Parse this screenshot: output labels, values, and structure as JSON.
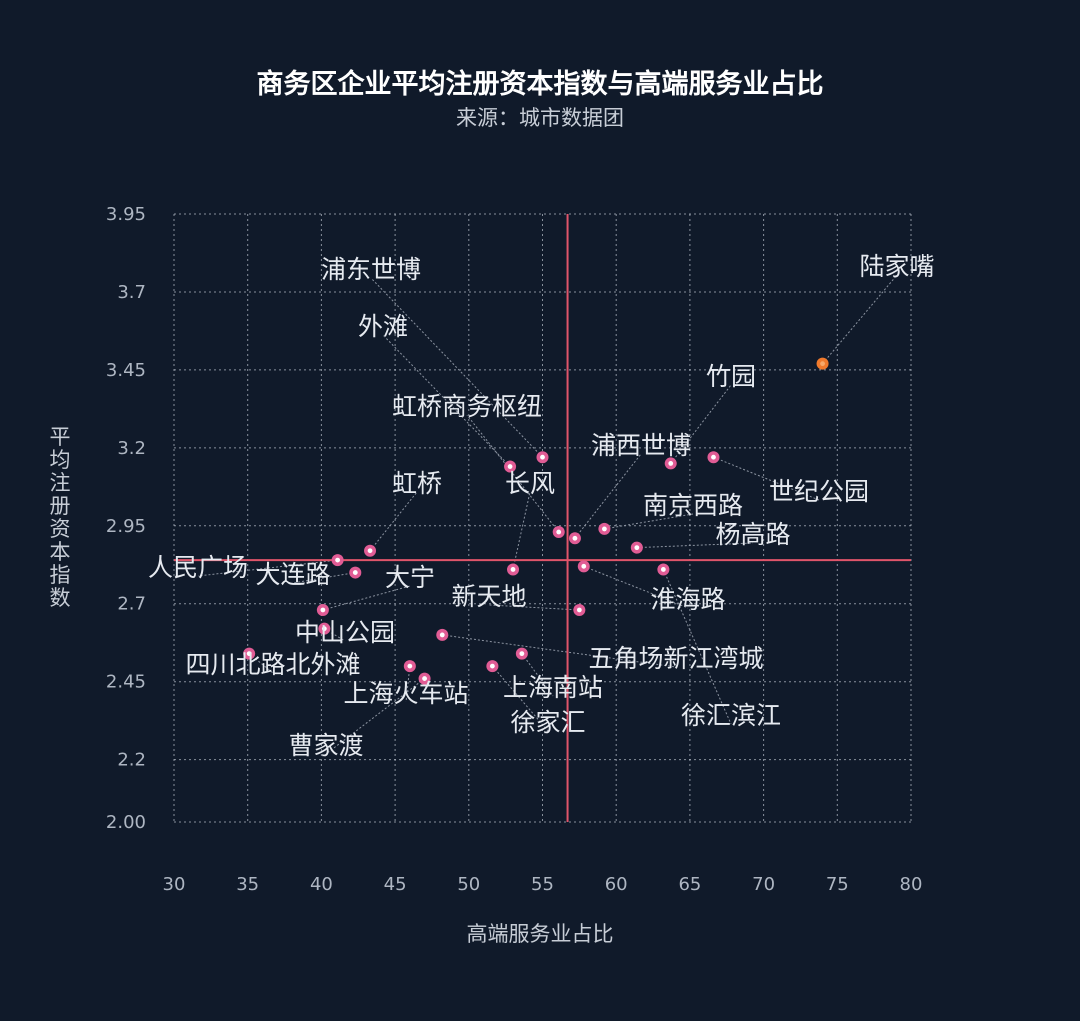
{
  "colors": {
    "background": "#101a2a",
    "grid": "#c8d0da",
    "axis_text": "#aeb6c2",
    "point": "#e15c95",
    "highlight_point": "#f07a2c",
    "quadrant_line": "#e0556a",
    "label_text": "#e6eaf0",
    "leader_line": "#8b93a0"
  },
  "chart_data": {
    "type": "scatter",
    "title": "商务区企业平均注册资本指数与高端服务业占比",
    "subtitle": "来源：城市数据团",
    "xlabel": "高端服务业占比",
    "ylabel": "平均注册资本指数",
    "xlim": [
      30,
      80
    ],
    "ylim": [
      2.0,
      3.95
    ],
    "x_ticks": [
      "30",
      "35",
      "40",
      "45",
      "50",
      "55",
      "60",
      "65",
      "70",
      "75",
      "80"
    ],
    "x_tick_values": [
      30,
      35,
      40,
      45,
      50,
      55,
      60,
      65,
      70,
      75,
      80
    ],
    "y_ticks": [
      "2.00",
      "2.2",
      "2.45",
      "2.7",
      "2.95",
      "3.2",
      "3.45",
      "3.7",
      "3.95"
    ],
    "y_tick_values": [
      2.0,
      2.2,
      2.45,
      2.7,
      2.95,
      3.2,
      3.45,
      3.7,
      3.95
    ],
    "grid": true,
    "reference_lines": {
      "x": 56.7,
      "y": 2.84
    },
    "points": [
      {
        "name": "陆家嘴",
        "x": 74.0,
        "y": 3.47,
        "highlight": true
      },
      {
        "name": "浦东世博",
        "x": 55.0,
        "y": 3.17
      },
      {
        "name": "外滩",
        "x": 52.8,
        "y": 3.14
      },
      {
        "name": "竹园",
        "x": 63.7,
        "y": 3.15
      },
      {
        "name": "浦西世博",
        "x": 57.2,
        "y": 2.91
      },
      {
        "name": "世纪公园",
        "x": 66.6,
        "y": 3.17
      },
      {
        "name": "虹桥商务枢纽",
        "x": 56.1,
        "y": 2.93
      },
      {
        "name": "南京西路",
        "x": 59.2,
        "y": 2.94
      },
      {
        "name": "杨高路",
        "x": 61.4,
        "y": 2.88
      },
      {
        "name": "长风",
        "x": 53.0,
        "y": 2.81
      },
      {
        "name": "淮海路",
        "x": 57.8,
        "y": 2.82
      },
      {
        "name": "徐汇滨江",
        "x": 63.2,
        "y": 2.81
      },
      {
        "name": "虹桥",
        "x": 43.3,
        "y": 2.87
      },
      {
        "name": "人民广场",
        "x": 41.1,
        "y": 2.84
      },
      {
        "name": "大连路",
        "x": 42.3,
        "y": 2.8
      },
      {
        "name": "大宁",
        "x": 40.1,
        "y": 2.68
      },
      {
        "name": "中山公园",
        "x": 40.2,
        "y": 2.62
      },
      {
        "name": "新天地",
        "x": 57.5,
        "y": 2.68
      },
      {
        "name": "四川北路北外滩",
        "x": 35.1,
        "y": 2.54
      },
      {
        "name": "上海火车站",
        "x": 46.0,
        "y": 2.5
      },
      {
        "name": "曹家渡",
        "x": 47.0,
        "y": 2.46
      },
      {
        "name": "五角场新江湾城",
        "x": 48.2,
        "y": 2.6
      },
      {
        "name": "上海南站",
        "x": 53.6,
        "y": 2.54
      },
      {
        "name": "徐家汇",
        "x": 51.6,
        "y": 2.5
      }
    ]
  }
}
